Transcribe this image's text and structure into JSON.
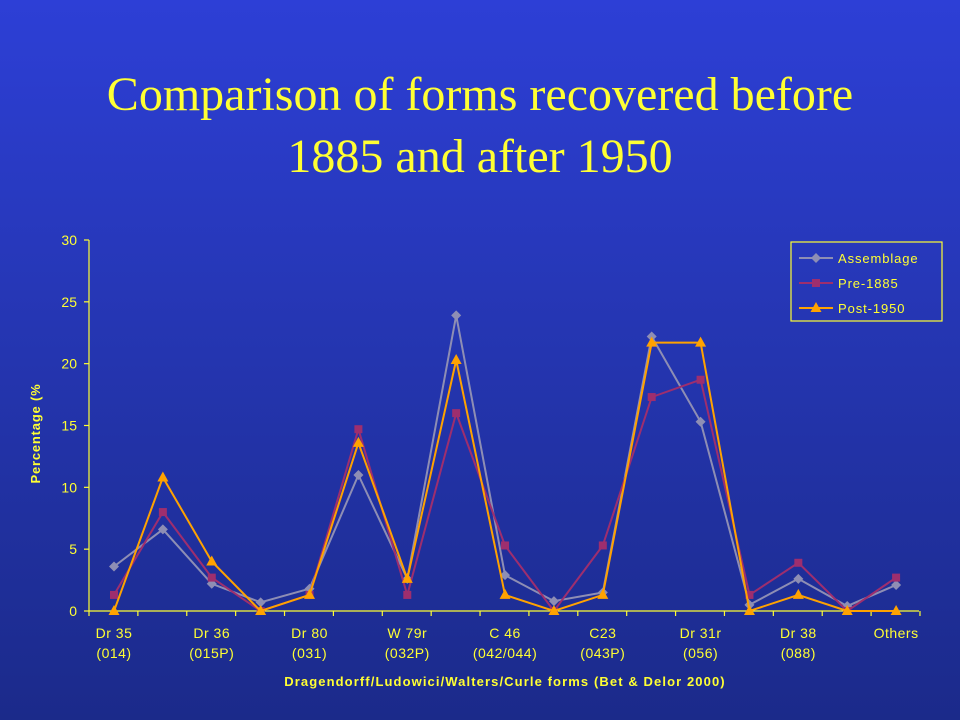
{
  "slide": {
    "title_line1": "Comparison of forms recovered before",
    "title_line2": "1885 and after 1950"
  },
  "chart_data": {
    "type": "line",
    "xlabel": "Dragendorff/Ludowici/Walters/Curle forms (Bet & Delor 2000)",
    "ylabel": "Percentage (%",
    "ylim": [
      0,
      30
    ],
    "yticks": [
      0,
      5,
      10,
      15,
      20,
      25,
      30
    ],
    "grid": false,
    "legend_position": "top-right",
    "tick_labels": [
      {
        "index": 0,
        "lines": [
          "Dr 35",
          "(014)"
        ]
      },
      {
        "index": 2,
        "lines": [
          "Dr 36",
          "(015P)"
        ]
      },
      {
        "index": 4,
        "lines": [
          "Dr 80",
          "(031)"
        ]
      },
      {
        "index": 6,
        "lines": [
          "W 79r",
          "(032P)"
        ]
      },
      {
        "index": 8,
        "lines": [
          "C 46",
          "(042/044)"
        ]
      },
      {
        "index": 10,
        "lines": [
          "C23",
          "(043P)"
        ]
      },
      {
        "index": 12,
        "lines": [
          "Dr 31r",
          "(056)"
        ]
      },
      {
        "index": 14,
        "lines": [
          "Dr 38",
          "(088)"
        ]
      },
      {
        "index": 16,
        "lines": [
          "Others"
        ]
      }
    ],
    "series": [
      {
        "name": "Assemblage",
        "color": "#8e8eb4",
        "marker": "diamond",
        "values": [
          3.6,
          6.6,
          2.2,
          0.7,
          1.8,
          11.0,
          2.6,
          23.9,
          2.9,
          0.8,
          1.5,
          22.2,
          15.3,
          0.5,
          2.6,
          0.4,
          2.1
        ]
      },
      {
        "name": "Pre-1885",
        "color": "#9e2e6e",
        "marker": "square",
        "values": [
          1.3,
          8.0,
          2.7,
          0.0,
          1.3,
          14.7,
          1.3,
          16.0,
          5.3,
          0.0,
          5.3,
          17.3,
          18.7,
          1.3,
          3.9,
          0.0,
          2.7
        ]
      },
      {
        "name": "Post-1950",
        "color": "#ffa200",
        "marker": "triangle",
        "values": [
          0.0,
          10.8,
          4.0,
          0.0,
          1.3,
          13.6,
          2.6,
          20.3,
          1.3,
          0.0,
          1.3,
          21.7,
          21.7,
          0.0,
          1.3,
          0.0,
          0.0
        ]
      }
    ]
  }
}
